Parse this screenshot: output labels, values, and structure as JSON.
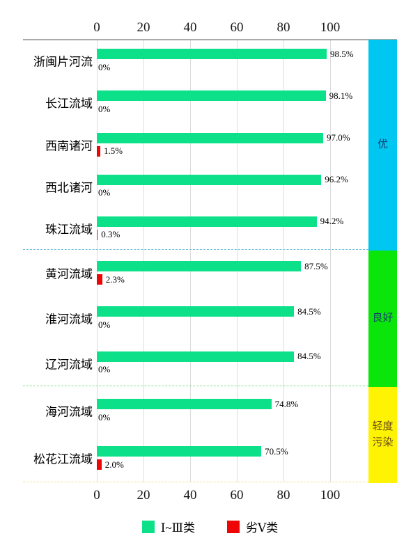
{
  "chart_data": {
    "type": "bar",
    "orientation": "horizontal",
    "title": "",
    "xlabel": "",
    "ylabel": "",
    "xlim": [
      0,
      100
    ],
    "axis_ticks": [
      0,
      20,
      40,
      60,
      80,
      100
    ],
    "grid": true,
    "legend_position": "bottom",
    "categories": [
      "浙闽片河流",
      "长江流域",
      "西南诸河",
      "西北诸河",
      "珠江流域",
      "黄河流域",
      "淮河流域",
      "辽河流域",
      "海河流域",
      "松花江流域"
    ],
    "series": [
      {
        "name": "Ⅰ~Ⅲ类",
        "color": "#0ce189",
        "values": [
          98.5,
          98.1,
          97.0,
          96.2,
          94.2,
          87.5,
          84.5,
          84.5,
          74.8,
          70.5
        ]
      },
      {
        "name": "劣Ⅴ类",
        "color": "#ee0606",
        "values": [
          0,
          0,
          1.5,
          0,
          0.3,
          2.3,
          0,
          0,
          0,
          2.0
        ]
      }
    ],
    "groups": [
      {
        "label": "优",
        "categories": [
          "浙闽片河流",
          "长江流域",
          "西南诸河",
          "西北诸河",
          "珠江流域"
        ]
      },
      {
        "label": "良好",
        "categories": [
          "黄河流域",
          "淮河流域",
          "辽河流域"
        ]
      },
      {
        "label": "轻度污染",
        "categories": [
          "海河流域",
          "松花江流域"
        ]
      }
    ]
  },
  "axis": {
    "top_ticks": [
      "0",
      "20",
      "40",
      "60",
      "80",
      "100"
    ],
    "bottom_ticks": [
      "0",
      "20",
      "40",
      "60",
      "80",
      "100"
    ]
  },
  "sections": [
    {
      "band_label": "优",
      "band_color": "#00c7f2",
      "band_text_color": "#14406e",
      "separator_color": "#6fc0dc",
      "rows": [
        {
          "label": "浙闽片河流",
          "good": 98.5,
          "good_label": "98.5%",
          "bad": 0,
          "bad_label": "0%"
        },
        {
          "label": "长江流域",
          "good": 98.1,
          "good_label": "98.1%",
          "bad": 0,
          "bad_label": "0%"
        },
        {
          "label": "西南诸河",
          "good": 97.0,
          "good_label": "97.0%",
          "bad": 1.5,
          "bad_label": "1.5%"
        },
        {
          "label": "西北诸河",
          "good": 96.2,
          "good_label": "96.2%",
          "bad": 0,
          "bad_label": "0%"
        },
        {
          "label": "珠江流域",
          "good": 94.2,
          "good_label": "94.2%",
          "bad": 0.3,
          "bad_label": "0.3%"
        }
      ]
    },
    {
      "band_label": "良好",
      "band_color": "#0ae60a",
      "band_text_color": "#14406e",
      "separator_color": "#7fe27f",
      "rows": [
        {
          "label": "黄河流域",
          "good": 87.5,
          "good_label": "87.5%",
          "bad": 2.3,
          "bad_label": "2.3%"
        },
        {
          "label": "淮河流域",
          "good": 84.5,
          "good_label": "84.5%",
          "bad": 0,
          "bad_label": "0%"
        },
        {
          "label": "辽河流域",
          "good": 84.5,
          "good_label": "84.5%",
          "bad": 0,
          "bad_label": "0%"
        }
      ]
    },
    {
      "band_label": "轻度污染",
      "band_color": "#fdf303",
      "band_text_color": "#6a4a17",
      "separator_color": "#eee08e",
      "rows": [
        {
          "label": "海河流域",
          "good": 74.8,
          "good_label": "74.8%",
          "bad": 0,
          "bad_label": "0%"
        },
        {
          "label": "松花江流域",
          "good": 70.5,
          "good_label": "70.5%",
          "bad": 2.0,
          "bad_label": "2.0%"
        }
      ]
    }
  ],
  "legend": {
    "items": [
      {
        "label": "Ⅰ~Ⅲ类",
        "color": "#0ce189"
      },
      {
        "label": "劣Ⅴ类",
        "color": "#ee0606"
      }
    ]
  },
  "colors": {
    "good_bar": "#0ce189",
    "bad_bar": "#ee0606",
    "axis_line": "#a9a9a9",
    "gridline": "#dcdcdc"
  }
}
